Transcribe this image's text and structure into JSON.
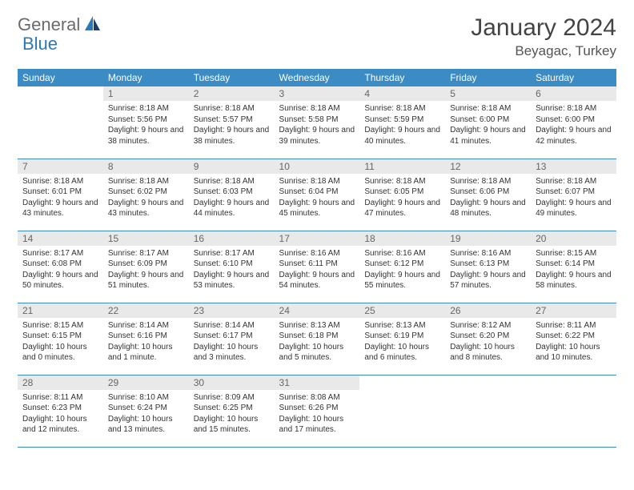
{
  "logo": {
    "part1": "General",
    "part2": "Blue"
  },
  "title": "January 2024",
  "location": "Beyagac, Turkey",
  "colors": {
    "header_bg": "#3b8bc4",
    "header_fg": "#ffffff",
    "daynum_bg": "#e9e9e9",
    "rule": "#3b8bc4",
    "logo_gray": "#6b6b6b",
    "logo_blue": "#2a7ab8"
  },
  "weekdays": [
    "Sunday",
    "Monday",
    "Tuesday",
    "Wednesday",
    "Thursday",
    "Friday",
    "Saturday"
  ],
  "weeks": [
    [
      {
        "n": "",
        "t": ""
      },
      {
        "n": "1",
        "t": "Sunrise: 8:18 AM\nSunset: 5:56 PM\nDaylight: 9 hours and 38 minutes."
      },
      {
        "n": "2",
        "t": "Sunrise: 8:18 AM\nSunset: 5:57 PM\nDaylight: 9 hours and 38 minutes."
      },
      {
        "n": "3",
        "t": "Sunrise: 8:18 AM\nSunset: 5:58 PM\nDaylight: 9 hours and 39 minutes."
      },
      {
        "n": "4",
        "t": "Sunrise: 8:18 AM\nSunset: 5:59 PM\nDaylight: 9 hours and 40 minutes."
      },
      {
        "n": "5",
        "t": "Sunrise: 8:18 AM\nSunset: 6:00 PM\nDaylight: 9 hours and 41 minutes."
      },
      {
        "n": "6",
        "t": "Sunrise: 8:18 AM\nSunset: 6:00 PM\nDaylight: 9 hours and 42 minutes."
      }
    ],
    [
      {
        "n": "7",
        "t": "Sunrise: 8:18 AM\nSunset: 6:01 PM\nDaylight: 9 hours and 43 minutes."
      },
      {
        "n": "8",
        "t": "Sunrise: 8:18 AM\nSunset: 6:02 PM\nDaylight: 9 hours and 43 minutes."
      },
      {
        "n": "9",
        "t": "Sunrise: 8:18 AM\nSunset: 6:03 PM\nDaylight: 9 hours and 44 minutes."
      },
      {
        "n": "10",
        "t": "Sunrise: 8:18 AM\nSunset: 6:04 PM\nDaylight: 9 hours and 45 minutes."
      },
      {
        "n": "11",
        "t": "Sunrise: 8:18 AM\nSunset: 6:05 PM\nDaylight: 9 hours and 47 minutes."
      },
      {
        "n": "12",
        "t": "Sunrise: 8:18 AM\nSunset: 6:06 PM\nDaylight: 9 hours and 48 minutes."
      },
      {
        "n": "13",
        "t": "Sunrise: 8:18 AM\nSunset: 6:07 PM\nDaylight: 9 hours and 49 minutes."
      }
    ],
    [
      {
        "n": "14",
        "t": "Sunrise: 8:17 AM\nSunset: 6:08 PM\nDaylight: 9 hours and 50 minutes."
      },
      {
        "n": "15",
        "t": "Sunrise: 8:17 AM\nSunset: 6:09 PM\nDaylight: 9 hours and 51 minutes."
      },
      {
        "n": "16",
        "t": "Sunrise: 8:17 AM\nSunset: 6:10 PM\nDaylight: 9 hours and 53 minutes."
      },
      {
        "n": "17",
        "t": "Sunrise: 8:16 AM\nSunset: 6:11 PM\nDaylight: 9 hours and 54 minutes."
      },
      {
        "n": "18",
        "t": "Sunrise: 8:16 AM\nSunset: 6:12 PM\nDaylight: 9 hours and 55 minutes."
      },
      {
        "n": "19",
        "t": "Sunrise: 8:16 AM\nSunset: 6:13 PM\nDaylight: 9 hours and 57 minutes."
      },
      {
        "n": "20",
        "t": "Sunrise: 8:15 AM\nSunset: 6:14 PM\nDaylight: 9 hours and 58 minutes."
      }
    ],
    [
      {
        "n": "21",
        "t": "Sunrise: 8:15 AM\nSunset: 6:15 PM\nDaylight: 10 hours and 0 minutes."
      },
      {
        "n": "22",
        "t": "Sunrise: 8:14 AM\nSunset: 6:16 PM\nDaylight: 10 hours and 1 minute."
      },
      {
        "n": "23",
        "t": "Sunrise: 8:14 AM\nSunset: 6:17 PM\nDaylight: 10 hours and 3 minutes."
      },
      {
        "n": "24",
        "t": "Sunrise: 8:13 AM\nSunset: 6:18 PM\nDaylight: 10 hours and 5 minutes."
      },
      {
        "n": "25",
        "t": "Sunrise: 8:13 AM\nSunset: 6:19 PM\nDaylight: 10 hours and 6 minutes."
      },
      {
        "n": "26",
        "t": "Sunrise: 8:12 AM\nSunset: 6:20 PM\nDaylight: 10 hours and 8 minutes."
      },
      {
        "n": "27",
        "t": "Sunrise: 8:11 AM\nSunset: 6:22 PM\nDaylight: 10 hours and 10 minutes."
      }
    ],
    [
      {
        "n": "28",
        "t": "Sunrise: 8:11 AM\nSunset: 6:23 PM\nDaylight: 10 hours and 12 minutes."
      },
      {
        "n": "29",
        "t": "Sunrise: 8:10 AM\nSunset: 6:24 PM\nDaylight: 10 hours and 13 minutes."
      },
      {
        "n": "30",
        "t": "Sunrise: 8:09 AM\nSunset: 6:25 PM\nDaylight: 10 hours and 15 minutes."
      },
      {
        "n": "31",
        "t": "Sunrise: 8:08 AM\nSunset: 6:26 PM\nDaylight: 10 hours and 17 minutes."
      },
      {
        "n": "",
        "t": ""
      },
      {
        "n": "",
        "t": ""
      },
      {
        "n": "",
        "t": ""
      }
    ]
  ]
}
